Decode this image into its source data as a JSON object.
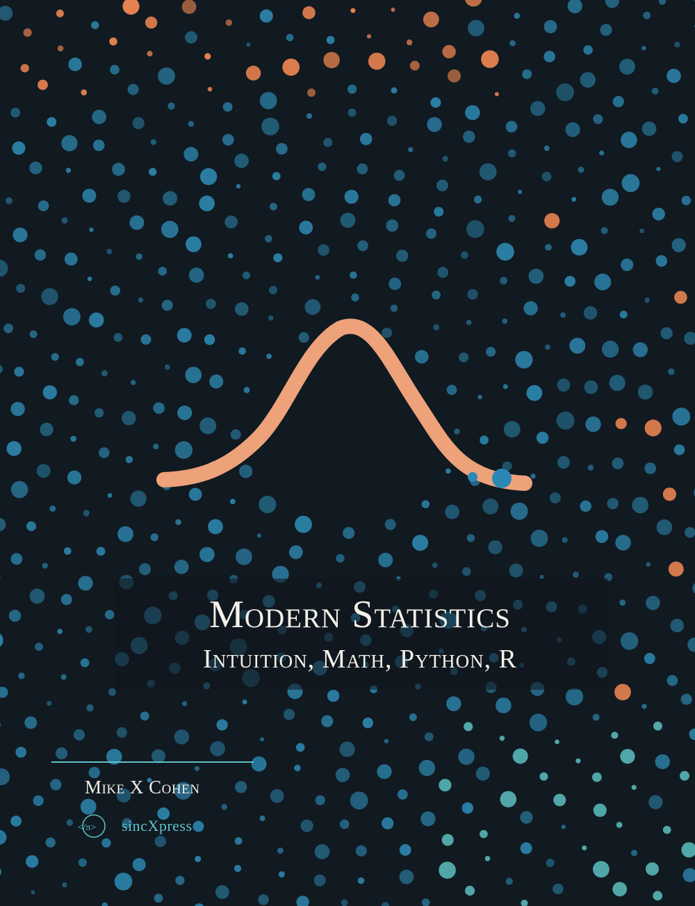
{
  "cover": {
    "title": "Modern Statistics",
    "subtitle": "Intuition, Math, Python, R",
    "author": "Mike X Cohen",
    "publisher": "sincXpress",
    "publisher_logo_text": "</π>"
  },
  "colors": {
    "background": "#111921",
    "dot_blue": "#2b7ea3",
    "dot_orange": "#e8834f",
    "dot_teal": "#62c9c9",
    "curve": "#eda27a",
    "title_text": "#f4f1ea",
    "accent": "#5fc3c7"
  }
}
